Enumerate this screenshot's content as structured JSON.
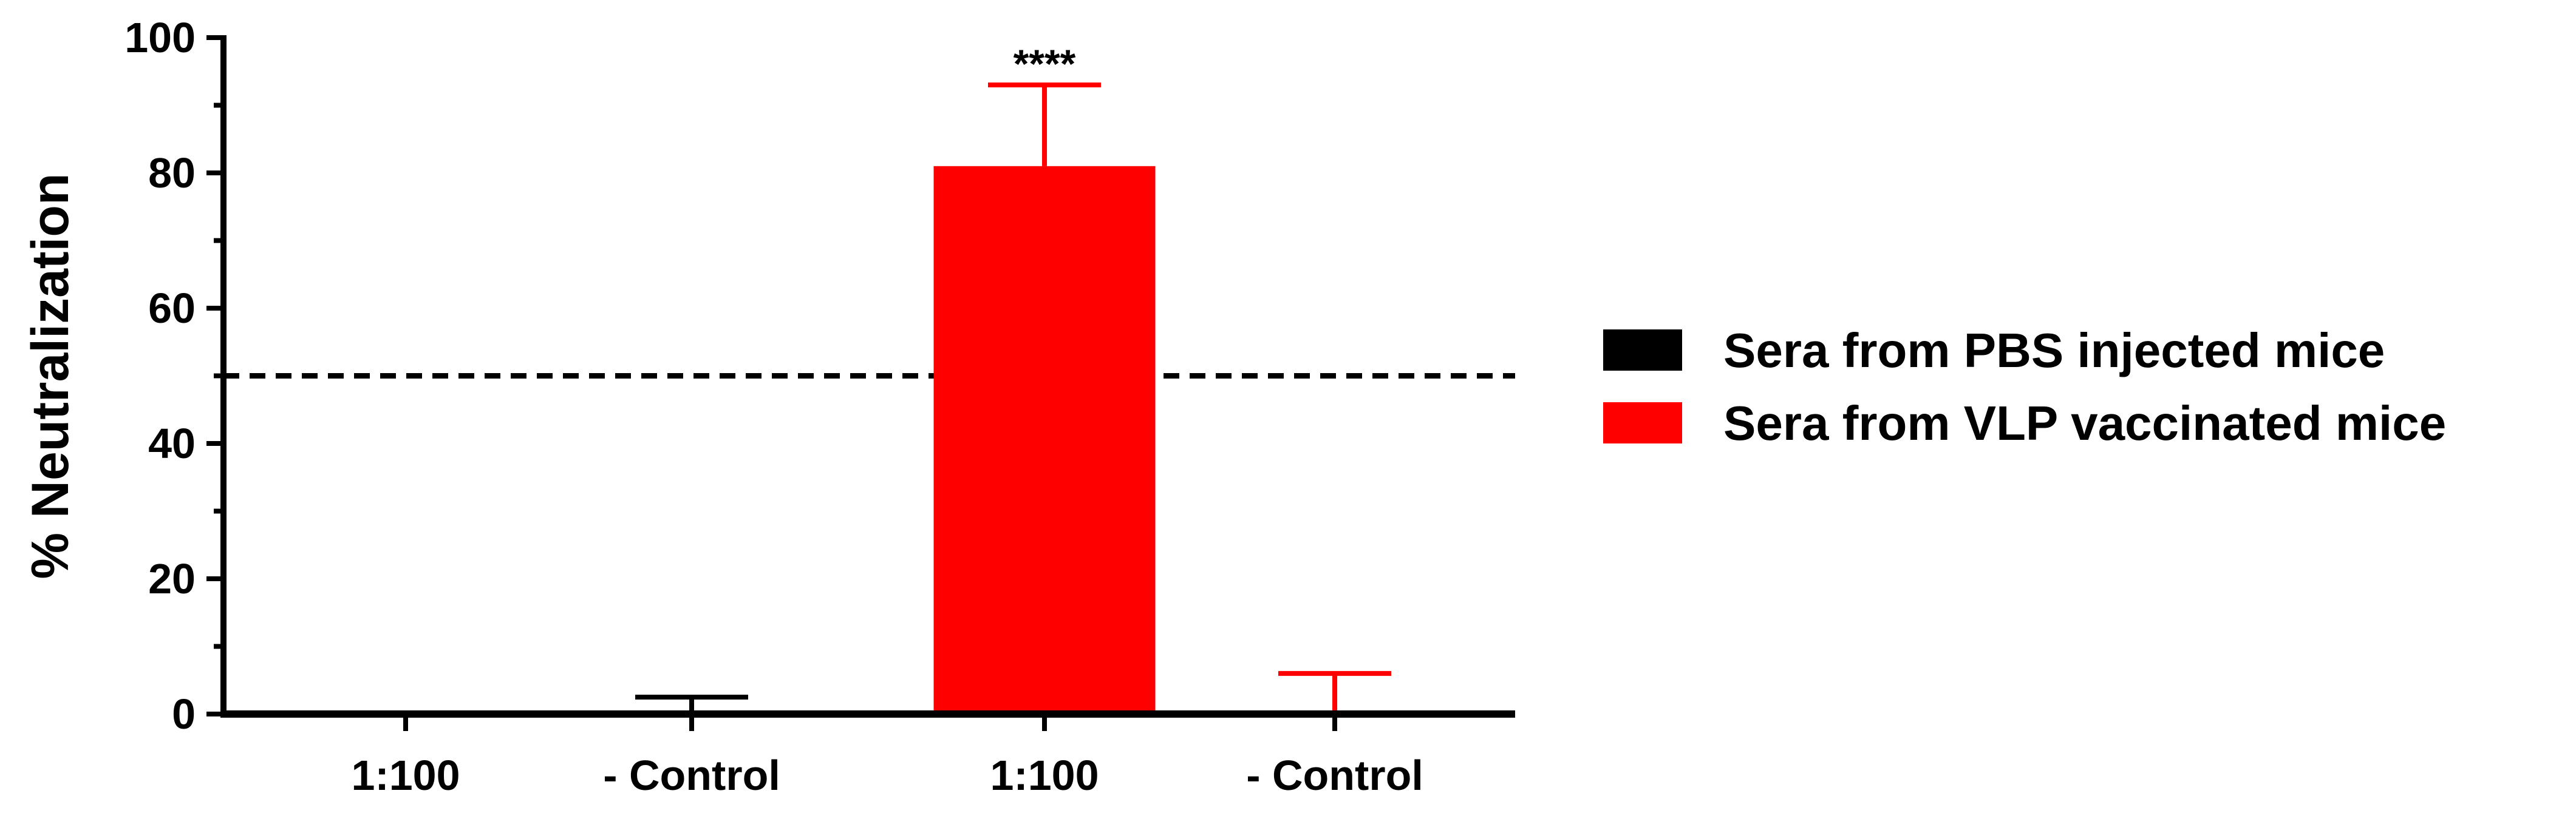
{
  "chart_data": {
    "type": "bar",
    "title": "",
    "xlabel": "",
    "ylabel": "% Neutralization",
    "ylim": [
      0,
      100
    ],
    "yticks": [
      "0",
      "20",
      "40",
      "60",
      "80",
      "100"
    ],
    "categories": [
      "1:100",
      "- Control",
      "1:100",
      "- Control"
    ],
    "bars": [
      {
        "category": "1:100",
        "series": "Sera from PBS injected mice",
        "value": 0,
        "error": 0
      },
      {
        "category": "- Control",
        "series": "Sera from PBS injected mice",
        "value": 0,
        "error": 2.5
      },
      {
        "category": "1:100",
        "series": "Sera from VLP vaccinated mice",
        "value": 81,
        "error": 12
      },
      {
        "category": "- Control",
        "series": "Sera from VLP vaccinated mice",
        "value": 0,
        "error": 6
      }
    ],
    "series": [
      {
        "name": "Sera from PBS injected mice",
        "color": "#000000"
      },
      {
        "name": "Sera from VLP vaccinated mice",
        "color": "#ff0000"
      }
    ],
    "reference_line": {
      "y": 50,
      "style": "dashed"
    },
    "annotations": [
      {
        "text": "****",
        "bar": 2
      }
    ],
    "grid": false,
    "legend_position": "right"
  }
}
